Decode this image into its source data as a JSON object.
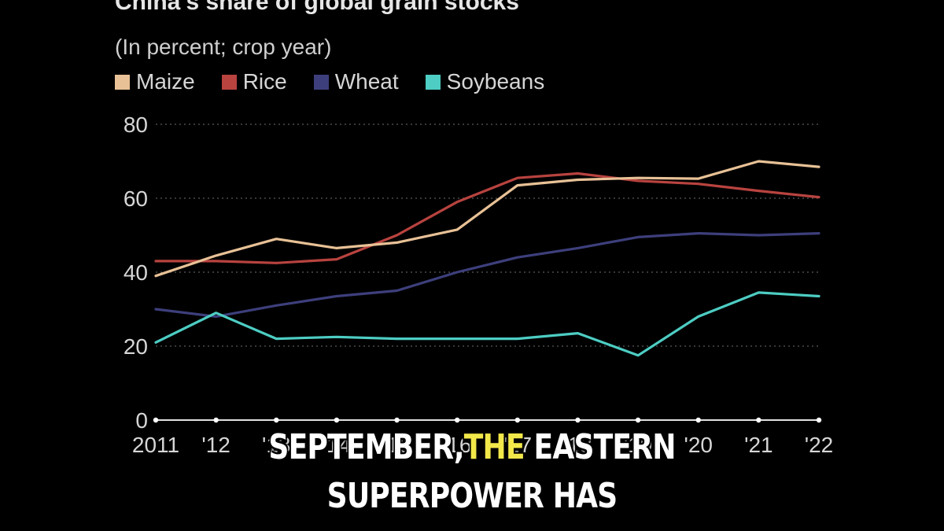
{
  "chart_data": {
    "type": "line",
    "title": "China's share of global grain stocks",
    "subtitle": "(In percent; crop year)",
    "x": [
      2011,
      2012,
      2013,
      2014,
      2015,
      2016,
      2017,
      2018,
      2019,
      2020,
      2021,
      2022
    ],
    "x_tick_labels": [
      "2011",
      "'12",
      "'13",
      "'14",
      "'15",
      "'16",
      "'17",
      "'18",
      "'19",
      "'20",
      "'21",
      "'22"
    ],
    "ylim": [
      0,
      80
    ],
    "y_ticks": [
      0,
      20,
      40,
      60,
      80
    ],
    "grid": true,
    "legend_position": "top-left",
    "series": [
      {
        "name": "Maize",
        "color": "#e8c196",
        "values": [
          39,
          44.5,
          49,
          46.5,
          48,
          51.5,
          63.5,
          65,
          65.5,
          65.3,
          70,
          68.5
        ]
      },
      {
        "name": "Rice",
        "color": "#b8433f",
        "values": [
          43,
          43,
          42.5,
          43.5,
          50,
          59,
          65.5,
          66.7,
          64.7,
          63.9,
          62,
          60.3
        ]
      },
      {
        "name": "Wheat",
        "color": "#3d3f7c",
        "values": [
          30,
          28,
          31,
          33.5,
          35,
          40,
          44,
          46.5,
          49.5,
          50.5,
          50,
          50.5
        ]
      },
      {
        "name": "Soybeans",
        "color": "#4dcdc3",
        "values": [
          21,
          29,
          22,
          22.5,
          22,
          22,
          22,
          23.5,
          17.5,
          28,
          34.5,
          33.5
        ]
      }
    ]
  },
  "caption": {
    "line1_part1": "SEPTEMBER,",
    "line1_highlight": "THE",
    "line1_part2": "EASTERN",
    "line2": "SUPERPOWER HAS"
  }
}
